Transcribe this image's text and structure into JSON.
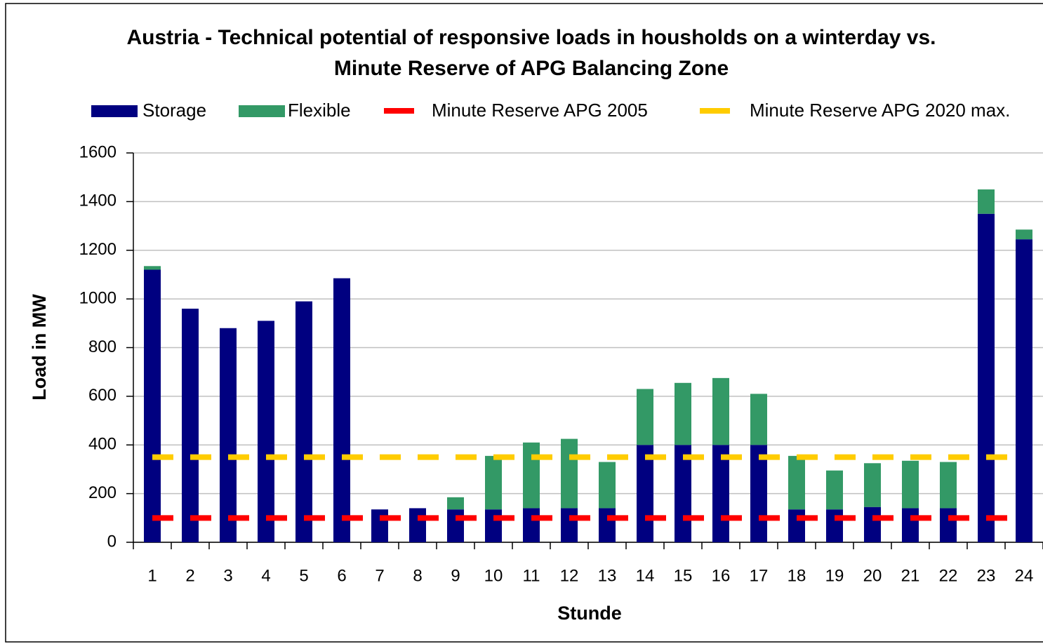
{
  "chart_data": {
    "type": "bar",
    "stacked": true,
    "title": "Austria - Technical potential of responsive loads in housholds on a winterday vs. Minute Reserve of APG Balancing Zone",
    "x_label": "Stunde",
    "y_label": "Load in MW",
    "categories": [
      "1",
      "2",
      "3",
      "4",
      "5",
      "6",
      "7",
      "8",
      "9",
      "10",
      "11",
      "12",
      "13",
      "14",
      "15",
      "16",
      "17",
      "18",
      "19",
      "20",
      "21",
      "22",
      "23",
      "24"
    ],
    "series": [
      {
        "name": "Storage",
        "type": "bar",
        "color": "#000080",
        "values": [
          1120,
          960,
          880,
          910,
          990,
          1085,
          135,
          140,
          135,
          135,
          140,
          140,
          140,
          400,
          400,
          400,
          400,
          135,
          135,
          145,
          140,
          140,
          1350,
          1245
        ]
      },
      {
        "name": "Flexible",
        "type": "bar",
        "color": "#339966",
        "values": [
          15,
          0,
          0,
          0,
          0,
          0,
          0,
          0,
          50,
          220,
          270,
          285,
          190,
          230,
          255,
          275,
          210,
          220,
          160,
          180,
          195,
          190,
          100,
          40
        ]
      },
      {
        "name": "Minute Reserve APG 2005",
        "type": "line",
        "dashed": true,
        "color": "#ff0000",
        "values": [
          100,
          100,
          100,
          100,
          100,
          100,
          100,
          100,
          100,
          100,
          100,
          100,
          100,
          100,
          100,
          100,
          100,
          100,
          100,
          100,
          100,
          100,
          100,
          100
        ]
      },
      {
        "name": "Minute Reserve APG 2020 max.",
        "type": "line",
        "dashed": true,
        "color": "#ffcc00",
        "values": [
          350,
          350,
          350,
          350,
          350,
          350,
          350,
          350,
          350,
          350,
          350,
          350,
          350,
          350,
          350,
          350,
          350,
          350,
          350,
          350,
          350,
          350,
          350,
          350
        ]
      }
    ],
    "ylim": [
      0,
      1600
    ],
    "yticks": [
      0,
      200,
      400,
      600,
      800,
      1000,
      1200,
      1400,
      1600
    ],
    "grid": true
  }
}
